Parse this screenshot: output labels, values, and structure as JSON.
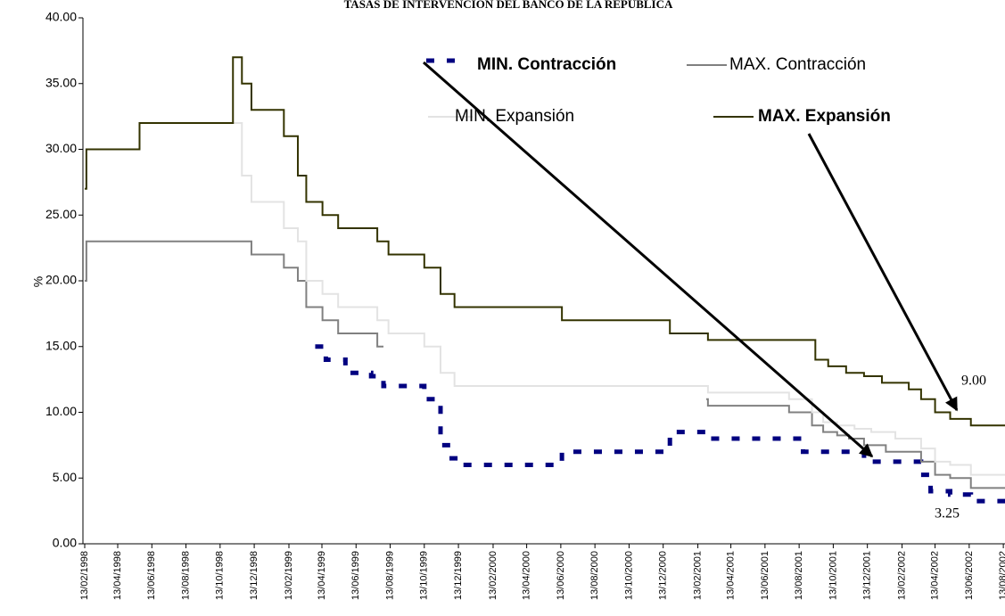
{
  "chart_data": {
    "type": "line",
    "title": "TASAS DE INTERVENCIÓN DEL BANCO DE LA REPÚBLICA",
    "y_label": "%",
    "line_shape": "step",
    "xlim": [
      "13/02/1998",
      "16/08/2002"
    ],
    "xticks": [
      "13/02/1998",
      "13/04/1998",
      "13/06/1998",
      "13/08/1998",
      "13/10/1998",
      "13/12/1998",
      "13/02/1999",
      "13/04/1999",
      "13/06/1999",
      "13/08/1999",
      "13/10/1999",
      "13/12/1999",
      "13/02/2000",
      "13/04/2000",
      "13/06/2000",
      "13/08/2000",
      "13/10/2000",
      "13/12/2000",
      "13/02/2001",
      "13/04/2001",
      "13/06/2001",
      "13/08/2001",
      "13/10/2001",
      "13/12/2001",
      "13/02/2002",
      "13/04/2002",
      "13/06/2002",
      "13/08/2002"
    ],
    "ylim": [
      0,
      40
    ],
    "yticks": [
      {
        "value": 0,
        "label": "0.00"
      },
      {
        "value": 5,
        "label": "5.00"
      },
      {
        "value": 10,
        "label": "10.00"
      },
      {
        "value": 15,
        "label": "15.00"
      },
      {
        "value": 20,
        "label": "20.00"
      },
      {
        "value": 25,
        "label": "25.00"
      },
      {
        "value": 30,
        "label": "30.00"
      },
      {
        "value": 35,
        "label": "35.00"
      },
      {
        "value": 40,
        "label": "40.00"
      }
    ],
    "series": [
      {
        "name": "MIN. Contracción",
        "color": "#000080",
        "dashed": true,
        "x": [
          "01/04/1999",
          "20/04/1999",
          "25/05/1999",
          "10/07/1999",
          "01/08/1999",
          "13/10/1999",
          "11/11/1999",
          "01/12/1999",
          "20/12/1999",
          "15/06/2000",
          "25/12/2000",
          "03/03/2001",
          "20/08/2001",
          "07/12/2001",
          "19/03/2002",
          "05/04/2002",
          "10/05/2002",
          "16/06/2002",
          "16/08/2002"
        ],
        "values": [
          15,
          14,
          13,
          12.75,
          12,
          11,
          7.5,
          6.5,
          6,
          7,
          8.5,
          8,
          7,
          6.25,
          5.25,
          4,
          3.75,
          3.25,
          3.25
        ]
      },
      {
        "name": "MAX. Contracción",
        "color": "#808080",
        "x": [
          "13/02/1998",
          "16/02/1998",
          "08/12/1998",
          "04/02/1999",
          "01/03/1999",
          "16/03/1999",
          "14/04/1999",
          "12/05/1999",
          "21/07/1999",
          "01/08/1999",
          "15/12/2000",
          "28/02/2001",
          "03/03/2001",
          "26/07/2001",
          "05/09/2001",
          "25/09/2001",
          "20/10/2001",
          "10/11/2001",
          "07/12/2001",
          "15/01/2002",
          "19/03/2002",
          "13/04/2002",
          "10/05/2002",
          "16/06/2002",
          "16/08/2002"
        ],
        "values": [
          20,
          23,
          22,
          21,
          20,
          18,
          17,
          16,
          15,
          15,
          null,
          11,
          10.5,
          10,
          9,
          8.5,
          8.25,
          8,
          7.5,
          7,
          6.25,
          5.25,
          5,
          4.25,
          4.25
        ]
      },
      {
        "name": "MIN. Expansión",
        "color": "#e3e3e3",
        "x": [
          "05/11/1998",
          "21/11/1998",
          "08/12/1998",
          "04/02/1999",
          "01/03/1999",
          "16/03/1999",
          "14/04/1999",
          "12/05/1999",
          "21/07/1999",
          "10/08/1999",
          "13/10/1999",
          "11/11/1999",
          "06/12/1999",
          "03/03/2001",
          "26/07/2001",
          "05/09/2001",
          "25/09/2001",
          "20/10/2001",
          "20/11/2001",
          "20/12/2001",
          "01/02/2002",
          "19/03/2002",
          "13/04/2002",
          "10/05/2002",
          "16/06/2002",
          "16/08/2002"
        ],
        "values": [
          32,
          28,
          26,
          24,
          23,
          20,
          19,
          18,
          17,
          16,
          15,
          13,
          12,
          11.5,
          11,
          10,
          9.25,
          9,
          8.75,
          8.5,
          8,
          7.25,
          6.25,
          6,
          5.25,
          5.25
        ]
      },
      {
        "name": "MAX. Expansión",
        "color": "#333300",
        "x": [
          "13/02/1998",
          "16/02/1998",
          "22/05/1998",
          "05/11/1998",
          "21/11/1998",
          "08/12/1998",
          "04/02/1999",
          "01/03/1999",
          "16/03/1999",
          "14/04/1999",
          "12/05/1999",
          "21/07/1999",
          "10/08/1999",
          "13/10/1999",
          "11/11/1999",
          "06/12/1999",
          "15/06/2000",
          "25/12/2000",
          "03/03/2001",
          "11/09/2001",
          "04/10/2001",
          "05/11/2001",
          "07/12/2001",
          "08/01/2002",
          "25/02/2002",
          "19/03/2002",
          "13/04/2002",
          "10/05/2002",
          "16/06/2002",
          "16/08/2002"
        ],
        "values": [
          27,
          30,
          32,
          37,
          35,
          33,
          31,
          28,
          26,
          25,
          24,
          23,
          22,
          21,
          19,
          18,
          17,
          16,
          15.5,
          14,
          13.5,
          13,
          12.75,
          12.25,
          11.75,
          11,
          10,
          9.5,
          9,
          9
        ]
      }
    ],
    "annotations": [
      "9.00",
      "3.25"
    ]
  }
}
